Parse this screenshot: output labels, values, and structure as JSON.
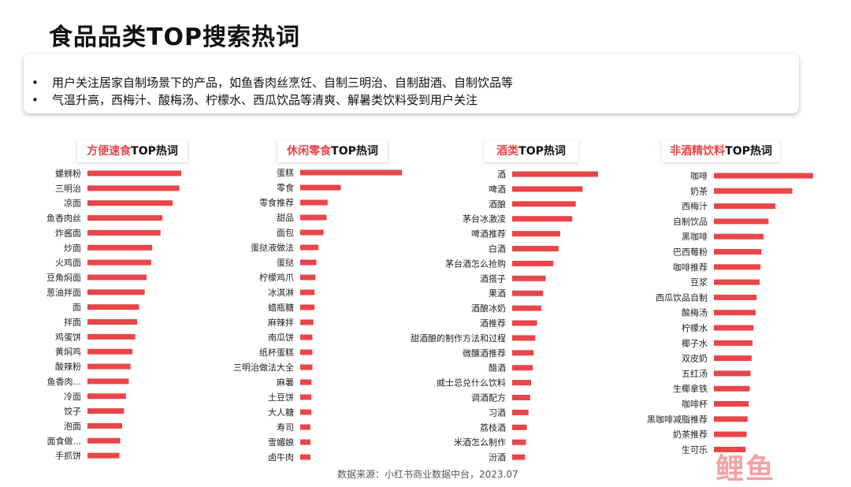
{
  "page": {
    "title": "食品品类TOP搜索热词",
    "bullets": [
      "用户关注居家自制场景下的产品，如鱼香肉丝烹饪、自制三明治、自制甜酒、自制饮品等",
      "气温升高，西梅汁、酸梅汤、柠檬水、西瓜饮品等清爽、解暑类饮料受到用户关注"
    ],
    "bullet_symbol": "•",
    "source": "数据来源：小红书商业数据中台，2023.07",
    "logo_text": "鲤鱼",
    "bar_color": "#e8464a",
    "highlight_color": "#e8464a"
  },
  "chart_data": [
    {
      "type": "bar",
      "orientation": "horizontal",
      "title_highlight": "方便速食",
      "title_rest": "TOP热词",
      "categories": [
        "螺蛳粉",
        "三明治",
        "凉面",
        "鱼香肉丝",
        "炸酱面",
        "炒面",
        "火鸡面",
        "豆角焖面",
        "葱油拌面",
        "面",
        "拌面",
        "鸡蛋饼",
        "黄焖鸡",
        "酸辣粉",
        "鱼香肉...",
        "冷面",
        "饺子",
        "泡面",
        "面食做...",
        "手抓饼"
      ],
      "values": [
        100,
        98,
        91,
        80,
        78,
        69,
        68,
        63,
        61,
        55,
        53,
        51,
        48,
        46,
        44,
        41,
        39,
        37,
        35,
        34
      ]
    },
    {
      "type": "bar",
      "orientation": "horizontal",
      "title_highlight": "休闲零食",
      "title_rest": "TOP热词",
      "categories": [
        "蛋糕",
        "零食",
        "零食推荐",
        "甜品",
        "面包",
        "蛋挞液做法",
        "蛋挞",
        "柠檬鸡爪",
        "冰淇淋",
        "蜡瓶糖",
        "麻辣拌",
        "南瓜饼",
        "纸杯蛋糕",
        "三明治做法大全",
        "麻薯",
        "土豆饼",
        "大人糖",
        "寿司",
        "雪媚娘",
        "卤牛肉"
      ],
      "values": [
        100,
        40,
        27,
        26,
        23,
        18,
        16,
        15,
        14,
        14,
        13,
        12,
        12,
        12,
        11,
        11,
        11,
        10,
        10,
        10
      ]
    },
    {
      "type": "bar",
      "orientation": "horizontal",
      "title_highlight": "酒类",
      "title_rest": "TOP热词",
      "categories": [
        "酒",
        "啤酒",
        "酒酿",
        "茅台冰激凌",
        "啤酒推荐",
        "白酒",
        "茅台酒怎么抢购",
        "酒搭子",
        "果酒",
        "酒酿冰奶",
        "酒推荐",
        "甜酒酿的制作方法和过程",
        "微醺酒推荐",
        "醋酒",
        "威士忌兑什么饮料",
        "调酒配方",
        "习酒",
        "荔枝酒",
        "米酒怎么制作",
        "汾酒"
      ],
      "values": [
        100,
        82,
        74,
        70,
        56,
        54,
        48,
        39,
        36,
        34,
        29,
        27,
        25,
        24,
        22,
        21,
        19,
        17,
        16,
        15
      ]
    },
    {
      "type": "bar",
      "orientation": "horizontal",
      "title_highlight": "非酒精饮料",
      "title_rest": "TOP热词",
      "categories": [
        "咖啡",
        "奶茶",
        "西梅汁",
        "自制饮品",
        "黑咖啡",
        "巴西莓粉",
        "咖啡推荐",
        "豆浆",
        "西瓜饮品自制",
        "酸梅汤",
        "柠檬水",
        "椰子水",
        "双皮奶",
        "五红汤",
        "生椰拿铁",
        "咖啡杯",
        "黑咖啡减脂推荐",
        "奶茶推荐",
        "生可乐"
      ],
      "values": [
        100,
        79,
        62,
        55,
        50,
        48,
        47,
        46,
        43,
        42,
        40,
        39,
        38,
        37,
        36,
        35,
        34,
        33,
        32
      ]
    }
  ]
}
